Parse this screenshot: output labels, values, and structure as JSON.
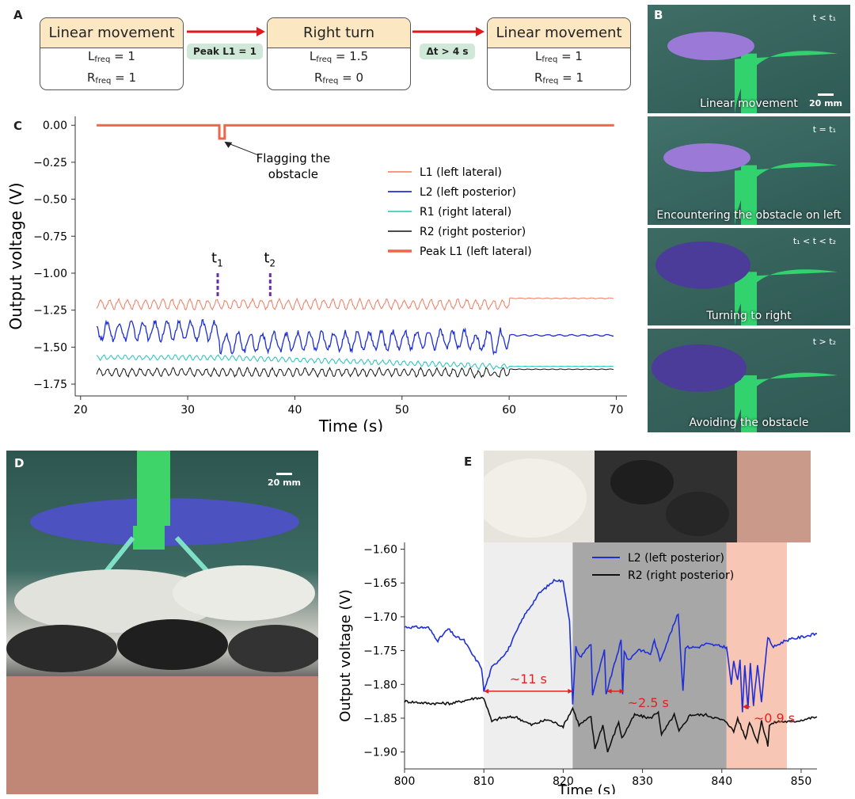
{
  "panel_a": {
    "letter": "A",
    "states": [
      {
        "title": "Linear movement",
        "l_label": "L",
        "r_label": "R",
        "sub": "freq",
        "l_value": "= 1",
        "r_value": "= 1"
      },
      {
        "title": "Right turn",
        "l_label": "L",
        "r_label": "R",
        "sub": "freq",
        "l_value": "= 1.5",
        "r_value": "= 0"
      },
      {
        "title": "Linear movement",
        "l_label": "L",
        "r_label": "R",
        "sub": "freq",
        "l_value": "= 1",
        "r_value": "= 1"
      }
    ],
    "transitions": [
      "Peak L1 = 1",
      "Δt > 4 s"
    ]
  },
  "panel_b": {
    "letter": "B",
    "frames": [
      {
        "time": "t < t₁",
        "caption": "Linear movement"
      },
      {
        "time": "t = t₁",
        "caption": "Encountering the obstacle on left"
      },
      {
        "time": "t₁ < t < t₂",
        "caption": "Turning to right"
      },
      {
        "time": "t > t₂",
        "caption": "Avoiding the obstacle"
      }
    ],
    "scale_bar": "20 mm"
  },
  "panel_d": {
    "letter": "D",
    "scale_bar": "20 mm"
  },
  "chart_data": [
    {
      "panel": "C",
      "type": "line",
      "xlabel": "Time (s)",
      "ylabel": "Output voltage (V)",
      "xlim": [
        19.5,
        71
      ],
      "ylim": [
        -1.83,
        0.06
      ],
      "xticks": [
        20,
        30,
        40,
        50,
        60,
        70
      ],
      "yticks": [
        0.0,
        -0.25,
        -0.5,
        -0.75,
        -1.0,
        -1.25,
        -1.5,
        -1.75
      ],
      "ytick_labels": [
        "0.00",
        "−0.25",
        "−0.50",
        "−0.75",
        "−1.00",
        "−1.25",
        "−1.50",
        "−1.75"
      ],
      "time_range": [
        21.5,
        69.8
      ],
      "series": [
        {
          "name": "L1 (left lateral)",
          "color": "#f07a5e",
          "baseline": -1.21,
          "after": -1.17,
          "amp": 0.03,
          "freq_hz": 1.2,
          "width": 1
        },
        {
          "name": "L2 (left posterior)",
          "color": "#1e2fd6",
          "baseline": -1.39,
          "after_turn": -1.47,
          "after": -1.42,
          "amp": 0.06,
          "freq_hz": 0.9,
          "width": 1.3
        },
        {
          "name": "R1 (right lateral)",
          "color": "#25c2b8",
          "baseline": -1.57,
          "after": -1.63,
          "amp": 0.015,
          "freq_hz": 1.5,
          "width": 1
        },
        {
          "name": "R2 (right posterior)",
          "color": "#111111",
          "baseline": -1.67,
          "after": -1.65,
          "amp": 0.025,
          "freq_hz": 1.3,
          "width": 1
        },
        {
          "name": "Peak L1 (left lateral)",
          "color": "#f0654a",
          "value": 0.0,
          "spike_at": 33.2,
          "spike_value": -0.09,
          "width": 3
        }
      ],
      "markers": [
        {
          "label": "t",
          "sub": "1",
          "x": 32.8
        },
        {
          "label": "t",
          "sub": "2",
          "x": 37.7
        }
      ],
      "annotation": {
        "text": [
          "Flagging the",
          "obstacle"
        ],
        "target_x": 33.2,
        "target_y": -0.1
      }
    },
    {
      "panel": "E",
      "type": "line",
      "xlabel": "Time (s)",
      "ylabel": "Output voltage (V)",
      "xlim": [
        800,
        852
      ],
      "ylim": [
        -1.925,
        -1.59
      ],
      "xticks": [
        800,
        810,
        820,
        830,
        840,
        850
      ],
      "yticks": [
        -1.6,
        -1.65,
        -1.7,
        -1.75,
        -1.8,
        -1.85,
        -1.9
      ],
      "ytick_labels": [
        "−1.60",
        "−1.65",
        "−1.70",
        "−1.75",
        "−1.80",
        "−1.85",
        "−1.90"
      ],
      "regions": [
        {
          "from": 810,
          "to": 821.2,
          "color": "#eeeeee"
        },
        {
          "from": 821.2,
          "to": 840.6,
          "color": "#a7a7a7"
        },
        {
          "from": 840.6,
          "to": 848.2,
          "color": "#f7c6b4"
        }
      ],
      "series": [
        {
          "name": "L2 (left posterior)",
          "color": "#1e2fd6",
          "x": [
            800,
            803,
            804.2,
            805.5,
            806.5,
            807.5,
            808.5,
            809.7,
            810,
            811,
            813,
            815,
            817,
            819,
            820,
            820.8,
            821.2,
            821.6,
            822.1,
            823.5,
            823.7,
            825.2,
            825.4,
            827.3,
            827.5,
            827.7,
            828.2,
            829.5,
            831,
            831.5,
            832.2,
            834.5,
            835.1,
            835.4,
            837,
            838,
            840.6,
            841.2,
            841.5,
            842,
            842.3,
            842.6,
            842.9,
            843.3,
            843.6,
            844,
            844.5,
            845,
            845.8,
            846.5,
            848,
            850,
            852
          ],
          "y": [
            -1.715,
            -1.716,
            -1.735,
            -1.718,
            -1.73,
            -1.735,
            -1.755,
            -1.775,
            -1.81,
            -1.775,
            -1.75,
            -1.7,
            -1.665,
            -1.645,
            -1.648,
            -1.705,
            -1.83,
            -1.745,
            -1.76,
            -1.74,
            -1.815,
            -1.75,
            -1.815,
            -1.735,
            -1.815,
            -1.75,
            -1.765,
            -1.748,
            -1.755,
            -1.735,
            -1.765,
            -1.695,
            -1.81,
            -1.745,
            -1.745,
            -1.74,
            -1.745,
            -1.8,
            -1.765,
            -1.795,
            -1.765,
            -1.84,
            -1.77,
            -1.835,
            -1.77,
            -1.83,
            -1.77,
            -1.825,
            -1.73,
            -1.745,
            -1.735,
            -1.73,
            -1.725
          ]
        },
        {
          "name": "R2 (right posterior)",
          "color": "#111111",
          "x": [
            800,
            803,
            806,
            809,
            810,
            811,
            812,
            814,
            816,
            818,
            820,
            821.2,
            822,
            823.5,
            824,
            825,
            825.6,
            827,
            827.4,
            829,
            831,
            832,
            832.4,
            834,
            834.6,
            836,
            838,
            840.6,
            841.5,
            842,
            843,
            843.5,
            844.5,
            845,
            845.8,
            846,
            847,
            849,
            852
          ],
          "y": [
            -1.825,
            -1.828,
            -1.828,
            -1.82,
            -1.82,
            -1.855,
            -1.85,
            -1.848,
            -1.86,
            -1.852,
            -1.862,
            -1.835,
            -1.86,
            -1.848,
            -1.895,
            -1.86,
            -1.9,
            -1.855,
            -1.88,
            -1.845,
            -1.85,
            -1.84,
            -1.875,
            -1.845,
            -1.87,
            -1.845,
            -1.845,
            -1.855,
            -1.87,
            -1.85,
            -1.88,
            -1.855,
            -1.885,
            -1.855,
            -1.89,
            -1.86,
            -1.855,
            -1.855,
            -1.848
          ]
        }
      ],
      "annotations": [
        {
          "text": "~11 s",
          "from": 810,
          "to": 821.2,
          "y": -1.81
        },
        {
          "text": "~2.5 s",
          "from": 825.5,
          "to": 827.7,
          "y": -1.81
        },
        {
          "text": "~0.9 s",
          "from": 842.6,
          "to": 843.6,
          "y": -1.833
        }
      ],
      "annotation_color": "#e02222",
      "legend_position": "top-right"
    }
  ]
}
